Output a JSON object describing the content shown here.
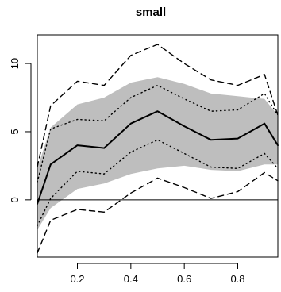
{
  "chart_data": {
    "type": "line",
    "title": "small",
    "xlabel": "",
    "ylabel": "",
    "xlim": [
      0.05,
      0.95
    ],
    "ylim": [
      -4.2,
      12.1
    ],
    "x_ticks": [
      0.2,
      0.4,
      0.6,
      0.8
    ],
    "y_ticks": [
      0,
      5,
      10
    ],
    "x_tick_labels": [
      "0.2",
      "0.4",
      "0.6",
      "0.8"
    ],
    "y_tick_labels": [
      "0",
      "5",
      "10"
    ],
    "reference_line": {
      "y": 0
    },
    "grid": false,
    "x": [
      0.05,
      0.1,
      0.2,
      0.3,
      0.4,
      0.5,
      0.6,
      0.7,
      0.8,
      0.9,
      0.95
    ],
    "band": {
      "lower": [
        -2.2,
        -0.6,
        0.8,
        1.2,
        1.9,
        2.3,
        2.5,
        2.2,
        2.1,
        2.6,
        2.6
      ],
      "upper": [
        2.3,
        5.3,
        7.0,
        7.5,
        8.6,
        9.0,
        8.5,
        7.8,
        7.6,
        7.4,
        6.2
      ]
    },
    "series": [
      {
        "role": "center",
        "style": "solid",
        "values": [
          -0.3,
          2.6,
          4.0,
          3.8,
          5.6,
          6.5,
          5.4,
          4.4,
          4.5,
          5.6,
          4.0
        ]
      },
      {
        "role": "inner_upper",
        "style": "dotted",
        "values": [
          1.3,
          5.2,
          5.9,
          5.8,
          7.5,
          8.4,
          7.4,
          6.5,
          6.6,
          7.8,
          6.2
        ]
      },
      {
        "role": "inner_lower",
        "style": "dotted",
        "values": [
          -1.9,
          0.1,
          2.1,
          1.9,
          3.5,
          4.4,
          3.4,
          2.4,
          2.3,
          3.4,
          2.3
        ]
      },
      {
        "role": "outer_upper",
        "style": "dashed",
        "values": [
          2.4,
          6.9,
          8.7,
          8.4,
          10.6,
          11.4,
          10.0,
          8.8,
          8.4,
          9.2,
          6.2
        ]
      },
      {
        "role": "outer_lower",
        "style": "dashed",
        "values": [
          -3.9,
          -1.5,
          -0.7,
          -0.9,
          0.5,
          1.6,
          0.9,
          0.1,
          0.6,
          2.0,
          1.4
        ]
      }
    ]
  }
}
